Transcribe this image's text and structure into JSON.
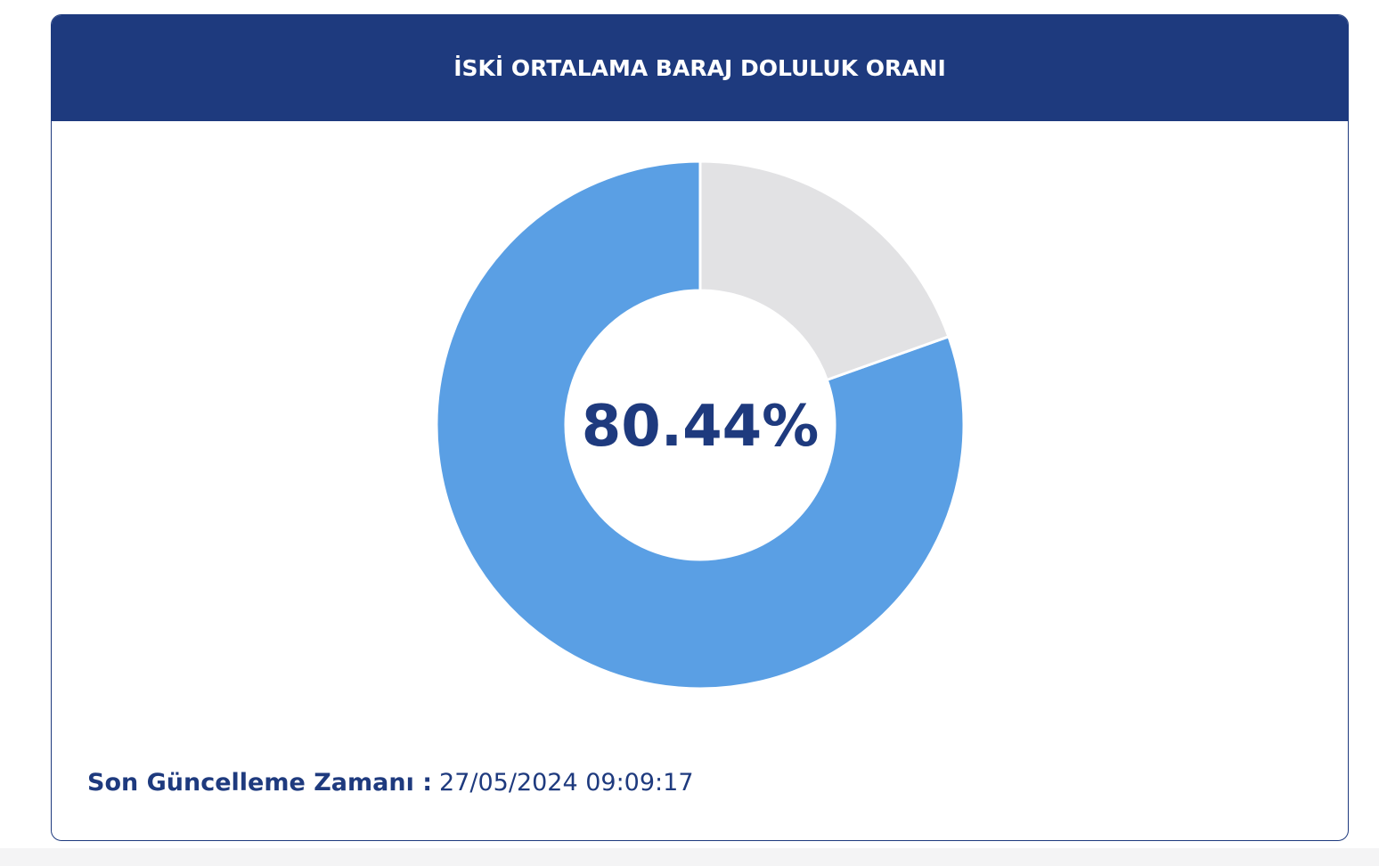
{
  "header": {
    "title": "İSKİ ORTALAMA BARAJ DOLULUK ORANI"
  },
  "chart_data": {
    "type": "donut",
    "values": [
      80.44,
      19.56
    ],
    "value_labels": [
      "80.44%",
      null
    ],
    "colors": [
      "#5a9fe4",
      "#e2e2e4"
    ]
  },
  "footer": {
    "label": "Son Güncelleme Zamanı :",
    "value": "27/05/2024 09:09:17"
  }
}
